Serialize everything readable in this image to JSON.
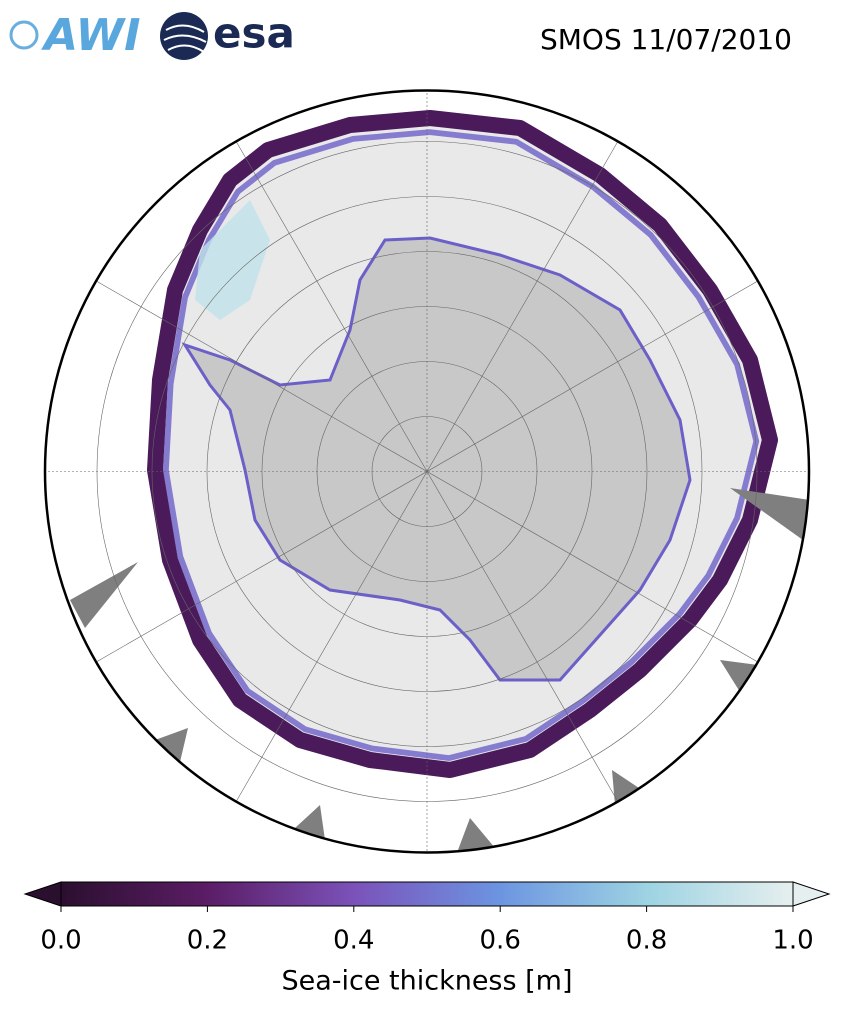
{
  "logos": {
    "awi": "AWI",
    "esa": "esa"
  },
  "title": "SMOS 11/07/2010",
  "colorbar": {
    "label": "Sea-ice thickness [m]",
    "range": [
      0,
      1
    ],
    "ticks": [
      {
        "value": 0,
        "label": "0.0"
      },
      0.2,
      0.4,
      0.6,
      0.8,
      {
        "value": 1,
        "label": "1.0"
      }
    ],
    "colors": [
      "#2b0f2f",
      "#5b1d66",
      "#7b52b9",
      "#6c95e1",
      "#9dd3e2",
      "#e6efef"
    ],
    "extend": "both"
  }
}
